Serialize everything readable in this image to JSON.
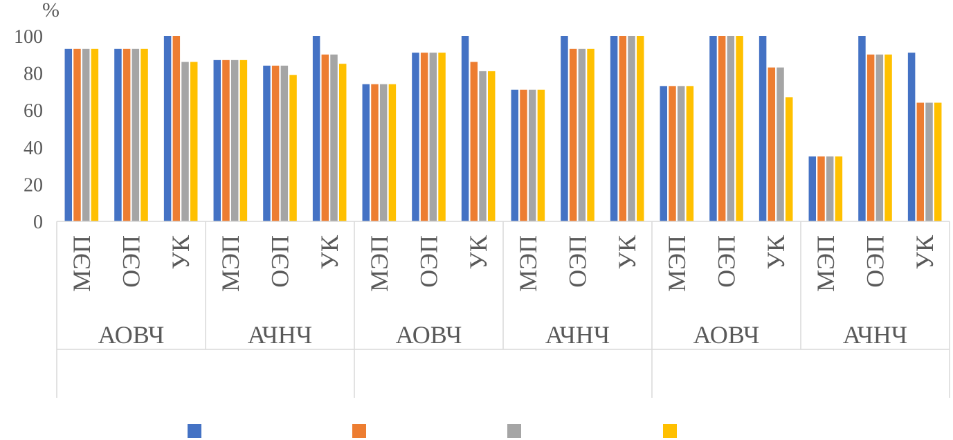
{
  "chart_data": {
    "type": "bar",
    "ylabel": "%",
    "ylim": [
      0,
      100
    ],
    "yticks": [
      0,
      20,
      40,
      60,
      80,
      100
    ],
    "grid": false,
    "legend_position": "bottom",
    "categories": [
      "МЭП",
      "ОЭП",
      "УК",
      "МЭП",
      "ОЭП",
      "УК",
      "МЭП",
      "ОЭП",
      "УК",
      "МЭП",
      "ОЭП",
      "УК",
      "МЭП",
      "ОЭП",
      "УК",
      "МЭП",
      "ОЭП",
      "УК"
    ],
    "groups": [
      {
        "label": "АОВЧ",
        "span": 3
      },
      {
        "label": "АЧНЧ",
        "span": 3
      },
      {
        "label": "АОВЧ",
        "span": 3
      },
      {
        "label": "АЧНЧ",
        "span": 3
      },
      {
        "label": "АОВЧ",
        "span": 3
      },
      {
        "label": "АЧНЧ",
        "span": 3
      }
    ],
    "supergroups": [
      {
        "label": "",
        "span": 6
      },
      {
        "label": "",
        "span": 6
      },
      {
        "label": "",
        "span": 6
      }
    ],
    "series": [
      {
        "color": "#4472c4",
        "values": [
          93,
          93,
          100,
          87,
          84,
          100,
          74,
          91,
          100,
          71,
          100,
          100,
          73,
          100,
          100,
          35,
          100,
          91
        ]
      },
      {
        "color": "#ed7d31",
        "values": [
          93,
          93,
          100,
          87,
          84,
          90,
          74,
          91,
          86,
          71,
          93,
          100,
          73,
          100,
          83,
          35,
          90,
          64
        ]
      },
      {
        "color": "#a5a5a5",
        "values": [
          93,
          93,
          86,
          87,
          84,
          90,
          74,
          91,
          81,
          71,
          93,
          100,
          73,
          100,
          83,
          35,
          90,
          64
        ]
      },
      {
        "color": "#ffc000",
        "values": [
          93,
          93,
          86,
          87,
          79,
          85,
          74,
          91,
          81,
          71,
          93,
          100,
          73,
          100,
          67,
          35,
          90,
          64
        ]
      }
    ]
  }
}
